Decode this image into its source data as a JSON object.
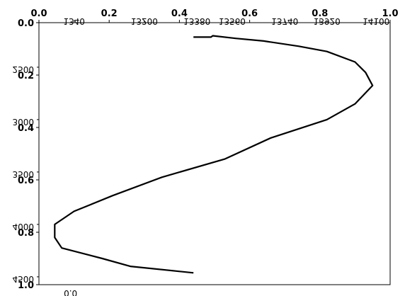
{
  "chart_data": {
    "type": "line",
    "title": "",
    "frame_ticks": {
      "x": [
        0.0,
        0.2,
        0.4,
        0.6,
        0.8,
        1.0
      ],
      "y": [
        0.0,
        0.2,
        0.4,
        0.6,
        0.8,
        1.0
      ],
      "x_labels": [
        "0.0",
        "0.2",
        "0.4",
        "0.6",
        "0.8",
        "1.0"
      ],
      "y_labels": [
        "0.0",
        "0.2",
        "0.4",
        "0.6",
        "0.8",
        "1.0"
      ]
    },
    "secondary_top_labels": [
      "1340",
      "13200",
      "13380",
      "13560",
      "13740",
      "13920",
      "14100"
    ],
    "secondary_top_positions": [
      0.1,
      0.3,
      0.45,
      0.55,
      0.7,
      0.82,
      0.96
    ],
    "left_labels": [
      "2500",
      "3000",
      "3500",
      "4000",
      "4500"
    ],
    "left_positions": [
      0.17,
      0.37,
      0.57,
      0.77,
      0.97
    ],
    "bottom_label": "0.0",
    "series": [
      {
        "color": "#000000",
        "points": [
          [
            0.44,
            0.055
          ],
          [
            0.49,
            0.055
          ],
          [
            0.495,
            0.05
          ],
          [
            0.56,
            0.06
          ],
          [
            0.64,
            0.07
          ],
          [
            0.74,
            0.09
          ],
          [
            0.82,
            0.11
          ],
          [
            0.9,
            0.15
          ],
          [
            0.93,
            0.19
          ],
          [
            0.95,
            0.24
          ],
          [
            0.9,
            0.31
          ],
          [
            0.82,
            0.37
          ],
          [
            0.66,
            0.44
          ],
          [
            0.53,
            0.52
          ],
          [
            0.35,
            0.59
          ],
          [
            0.21,
            0.66
          ],
          [
            0.1,
            0.72
          ],
          [
            0.045,
            0.77
          ],
          [
            0.045,
            0.82
          ],
          [
            0.065,
            0.86
          ],
          [
            0.18,
            0.9
          ],
          [
            0.26,
            0.93
          ],
          [
            0.44,
            0.955
          ]
        ]
      }
    ],
    "xlim": [
      0.0,
      1.0
    ],
    "ylim": [
      0.0,
      1.0
    ],
    "grid": false
  }
}
